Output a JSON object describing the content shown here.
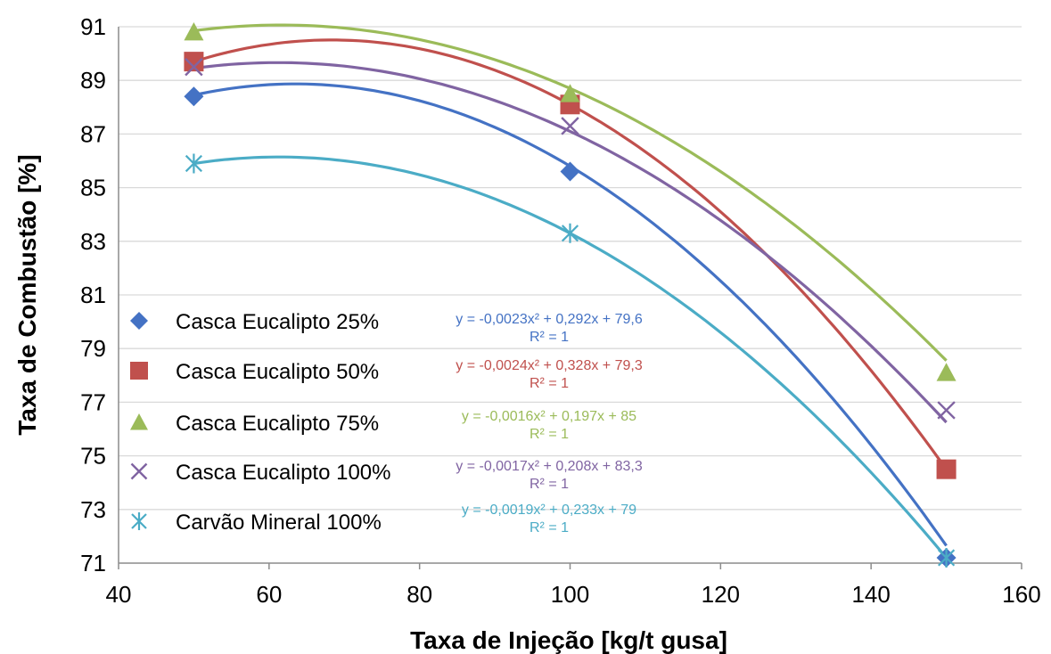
{
  "chart_data": {
    "type": "scatter",
    "xlabel": "Taxa de Injeção [kg/t gusa]",
    "ylabel": "Taxa de Combustão [%]",
    "xlim": [
      40,
      160
    ],
    "ylim": [
      71,
      91
    ],
    "xticks": [
      40,
      60,
      80,
      100,
      120,
      140,
      160
    ],
    "yticks": [
      71,
      73,
      75,
      77,
      79,
      81,
      83,
      85,
      87,
      89,
      91
    ],
    "grid": "horizontal",
    "legend_position": "left-bottom",
    "x": [
      50,
      100,
      150
    ],
    "series": [
      {
        "name": "Casca Eucalipto 25%",
        "marker": "diamond",
        "color": "#4472C4",
        "values": [
          88.4,
          85.6,
          71.2
        ],
        "trendline": {
          "a": -0.0023,
          "b": 0.292,
          "c": 79.6
        },
        "equation": "y = -0,0023x² + 0,292x + 79,6",
        "r2": "R² = 1"
      },
      {
        "name": "Casca Eucalipto 50%",
        "marker": "square",
        "color": "#C0504D",
        "values": [
          89.7,
          88.1,
          74.5
        ],
        "trendline": {
          "a": -0.0024,
          "b": 0.328,
          "c": 79.3
        },
        "equation": "y = -0,0024x² + 0,328x + 79,3",
        "r2": "R² = 1"
      },
      {
        "name": "Casca Eucalipto 75%",
        "marker": "triangle",
        "color": "#9BBB59",
        "values": [
          90.8,
          88.5,
          78.1
        ],
        "trendline": {
          "a": -0.0016,
          "b": 0.197,
          "c": 85
        },
        "equation": "y = -0,0016x² + 0,197x + 85",
        "r2": "R² = 1"
      },
      {
        "name": "Casca Eucalipto 100%",
        "marker": "x",
        "color": "#8064A2",
        "values": [
          89.5,
          87.3,
          76.7
        ],
        "trendline": {
          "a": -0.0017,
          "b": 0.208,
          "c": 83.3
        },
        "equation": "y = -0,0017x² + 0,208x + 83,3",
        "r2": "R² = 1"
      },
      {
        "name": "Carvão Mineral 100%",
        "marker": "star",
        "color": "#4BACC6",
        "values": [
          85.9,
          83.3,
          71.2
        ],
        "trendline": {
          "a": -0.0019,
          "b": 0.233,
          "c": 79
        },
        "equation": "y = -0,0019x² + 0,233x + 79",
        "r2": "R² = 1"
      }
    ]
  }
}
